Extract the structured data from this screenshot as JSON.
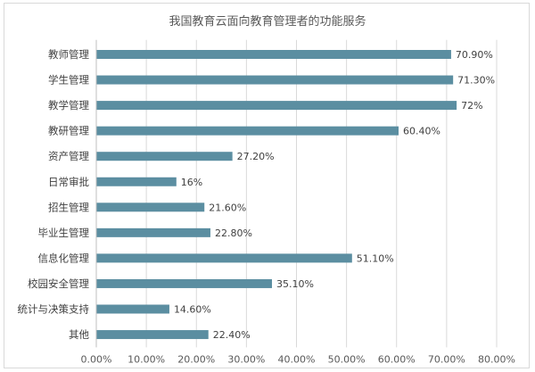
{
  "chart_data": {
    "type": "bar",
    "orientation": "horizontal",
    "title": "我国教育云面向教育管理者的功能服务",
    "categories": [
      "教师管理",
      "学生管理",
      "教学管理",
      "教研管理",
      "资产管理",
      "日常审批",
      "招生管理",
      "毕业生管理",
      "信息化管理",
      "校园安全管理",
      "统计与决策支持",
      "其他"
    ],
    "values": [
      70.9,
      71.3,
      72,
      60.4,
      27.2,
      16,
      21.6,
      22.8,
      51.1,
      35.1,
      14.6,
      22.4
    ],
    "value_labels": [
      "70.90%",
      "71.30%",
      "72%",
      "60.40%",
      "27.20%",
      "16%",
      "21.60%",
      "22.80%",
      "51.10%",
      "35.10%",
      "14.60%",
      "22.40%"
    ],
    "x_ticks": [
      "0.00%",
      "10.00%",
      "20.00%",
      "30.00%",
      "40.00%",
      "50.00%",
      "60.00%",
      "70.00%",
      "80.00%"
    ],
    "xlim": [
      0,
      80
    ],
    "bar_color": "#5b8ea1",
    "grid": true,
    "legend": false
  }
}
